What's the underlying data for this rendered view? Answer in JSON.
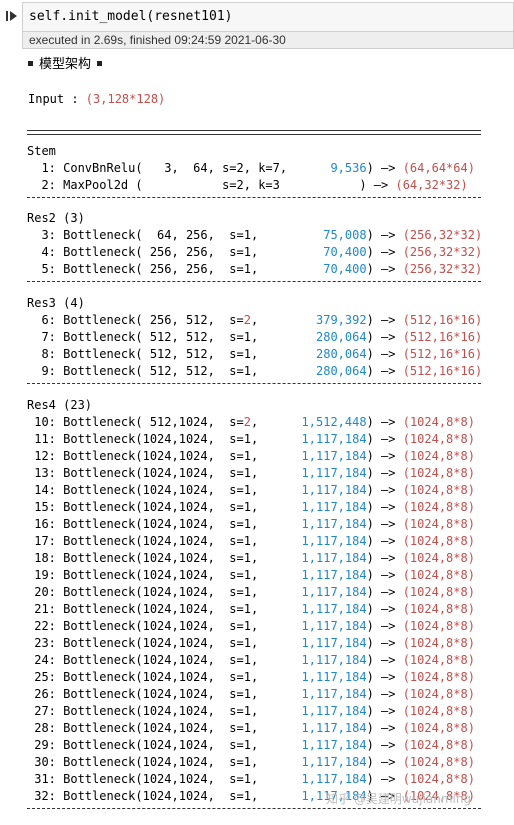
{
  "code_cell": {
    "code": "self.init_model(resnet101)"
  },
  "exec_status": "executed in 2.69s, finished 09:24:59 2021-06-30",
  "heading": "模型架构",
  "input": {
    "label": "Input : ",
    "value": "(3,128*128)"
  },
  "sections": [
    {
      "title": "Stem",
      "rows": [
        {
          "n": "  1: ",
          "layer": "ConvBnRelu(   3,  64, s=2, k=7,",
          "params": "      9,536",
          "tail": ") —> ",
          "out": "(64,64*64)"
        },
        {
          "n": "  2: ",
          "layer": "MaxPool2d (           s=2, k=3",
          "params": "           ",
          "tail": ") —> ",
          "out": "(64,32*32)"
        }
      ]
    },
    {
      "title": "Res2 (3)",
      "rows": [
        {
          "n": "  3: ",
          "layer": "Bottleneck(  64, 256,  s=1,    ",
          "params": "     75,008",
          "tail": ") —> ",
          "out": "(256,32*32)"
        },
        {
          "n": "  4: ",
          "layer": "Bottleneck( 256, 256,  s=1,    ",
          "params": "     70,400",
          "tail": ") —> ",
          "out": "(256,32*32)"
        },
        {
          "n": "  5: ",
          "layer": "Bottleneck( 256, 256,  s=1,    ",
          "params": "     70,400",
          "tail": ") —> ",
          "out": "(256,32*32)"
        }
      ]
    },
    {
      "title": "Res3 (4)",
      "rows": [
        {
          "n": "  6: ",
          "layer": "Bottleneck( 256, 512,  s=",
          "s2": "2",
          "layer2": ",    ",
          "params": "    379,392",
          "tail": ") —> ",
          "out": "(512,16*16)"
        },
        {
          "n": "  7: ",
          "layer": "Bottleneck( 512, 512,  s=1,    ",
          "params": "    280,064",
          "tail": ") —> ",
          "out": "(512,16*16)"
        },
        {
          "n": "  8: ",
          "layer": "Bottleneck( 512, 512,  s=1,    ",
          "params": "    280,064",
          "tail": ") —> ",
          "out": "(512,16*16)"
        },
        {
          "n": "  9: ",
          "layer": "Bottleneck( 512, 512,  s=1,    ",
          "params": "    280,064",
          "tail": ") —> ",
          "out": "(512,16*16)"
        }
      ]
    },
    {
      "title": "Res4 (23)",
      "rows": [
        {
          "n": " 10: ",
          "layer": "Bottleneck( 512,1024,  s=",
          "s2": "2",
          "layer2": ",    ",
          "params": "  1,512,448",
          "tail": ") —> ",
          "out": "(1024,8*8)"
        },
        {
          "n": " 11: ",
          "layer": "Bottleneck(1024,1024,  s=1,    ",
          "params": "  1,117,184",
          "tail": ") —> ",
          "out": "(1024,8*8)"
        },
        {
          "n": " 12: ",
          "layer": "Bottleneck(1024,1024,  s=1,    ",
          "params": "  1,117,184",
          "tail": ") —> ",
          "out": "(1024,8*8)"
        },
        {
          "n": " 13: ",
          "layer": "Bottleneck(1024,1024,  s=1,    ",
          "params": "  1,117,184",
          "tail": ") —> ",
          "out": "(1024,8*8)"
        },
        {
          "n": " 14: ",
          "layer": "Bottleneck(1024,1024,  s=1,    ",
          "params": "  1,117,184",
          "tail": ") —> ",
          "out": "(1024,8*8)"
        },
        {
          "n": " 15: ",
          "layer": "Bottleneck(1024,1024,  s=1,    ",
          "params": "  1,117,184",
          "tail": ") —> ",
          "out": "(1024,8*8)"
        },
        {
          "n": " 16: ",
          "layer": "Bottleneck(1024,1024,  s=1,    ",
          "params": "  1,117,184",
          "tail": ") —> ",
          "out": "(1024,8*8)"
        },
        {
          "n": " 17: ",
          "layer": "Bottleneck(1024,1024,  s=1,    ",
          "params": "  1,117,184",
          "tail": ") —> ",
          "out": "(1024,8*8)"
        },
        {
          "n": " 18: ",
          "layer": "Bottleneck(1024,1024,  s=1,    ",
          "params": "  1,117,184",
          "tail": ") —> ",
          "out": "(1024,8*8)"
        },
        {
          "n": " 19: ",
          "layer": "Bottleneck(1024,1024,  s=1,    ",
          "params": "  1,117,184",
          "tail": ") —> ",
          "out": "(1024,8*8)"
        },
        {
          "n": " 20: ",
          "layer": "Bottleneck(1024,1024,  s=1,    ",
          "params": "  1,117,184",
          "tail": ") —> ",
          "out": "(1024,8*8)"
        },
        {
          "n": " 21: ",
          "layer": "Bottleneck(1024,1024,  s=1,    ",
          "params": "  1,117,184",
          "tail": ") —> ",
          "out": "(1024,8*8)"
        },
        {
          "n": " 22: ",
          "layer": "Bottleneck(1024,1024,  s=1,    ",
          "params": "  1,117,184",
          "tail": ") —> ",
          "out": "(1024,8*8)"
        },
        {
          "n": " 23: ",
          "layer": "Bottleneck(1024,1024,  s=1,    ",
          "params": "  1,117,184",
          "tail": ") —> ",
          "out": "(1024,8*8)"
        },
        {
          "n": " 24: ",
          "layer": "Bottleneck(1024,1024,  s=1,    ",
          "params": "  1,117,184",
          "tail": ") —> ",
          "out": "(1024,8*8)"
        },
        {
          "n": " 25: ",
          "layer": "Bottleneck(1024,1024,  s=1,    ",
          "params": "  1,117,184",
          "tail": ") —> ",
          "out": "(1024,8*8)"
        },
        {
          "n": " 26: ",
          "layer": "Bottleneck(1024,1024,  s=1,    ",
          "params": "  1,117,184",
          "tail": ") —> ",
          "out": "(1024,8*8)"
        },
        {
          "n": " 27: ",
          "layer": "Bottleneck(1024,1024,  s=1,    ",
          "params": "  1,117,184",
          "tail": ") —> ",
          "out": "(1024,8*8)"
        },
        {
          "n": " 28: ",
          "layer": "Bottleneck(1024,1024,  s=1,    ",
          "params": "  1,117,184",
          "tail": ") —> ",
          "out": "(1024,8*8)"
        },
        {
          "n": " 29: ",
          "layer": "Bottleneck(1024,1024,  s=1,    ",
          "params": "  1,117,184",
          "tail": ") —> ",
          "out": "(1024,8*8)"
        },
        {
          "n": " 30: ",
          "layer": "Bottleneck(1024,1024,  s=1,    ",
          "params": "  1,117,184",
          "tail": ") —> ",
          "out": "(1024,8*8)"
        },
        {
          "n": " 31: ",
          "layer": "Bottleneck(1024,1024,  s=1,    ",
          "params": "  1,117,184",
          "tail": ") —> ",
          "out": "(1024,8*8)"
        },
        {
          "n": " 32: ",
          "layer": "Bottleneck(1024,1024,  s=1,    ",
          "params": "  1,117,184",
          "tail": ") —> ",
          "out": "(1024,8*8)"
        }
      ]
    }
  ],
  "watermark": "知乎 @吴建明wujianming",
  "colors": {
    "output": "#c0504d",
    "params": "#1f88c8",
    "stride2": "#c0504d"
  },
  "icons": {
    "run": "run-cell-icon"
  }
}
